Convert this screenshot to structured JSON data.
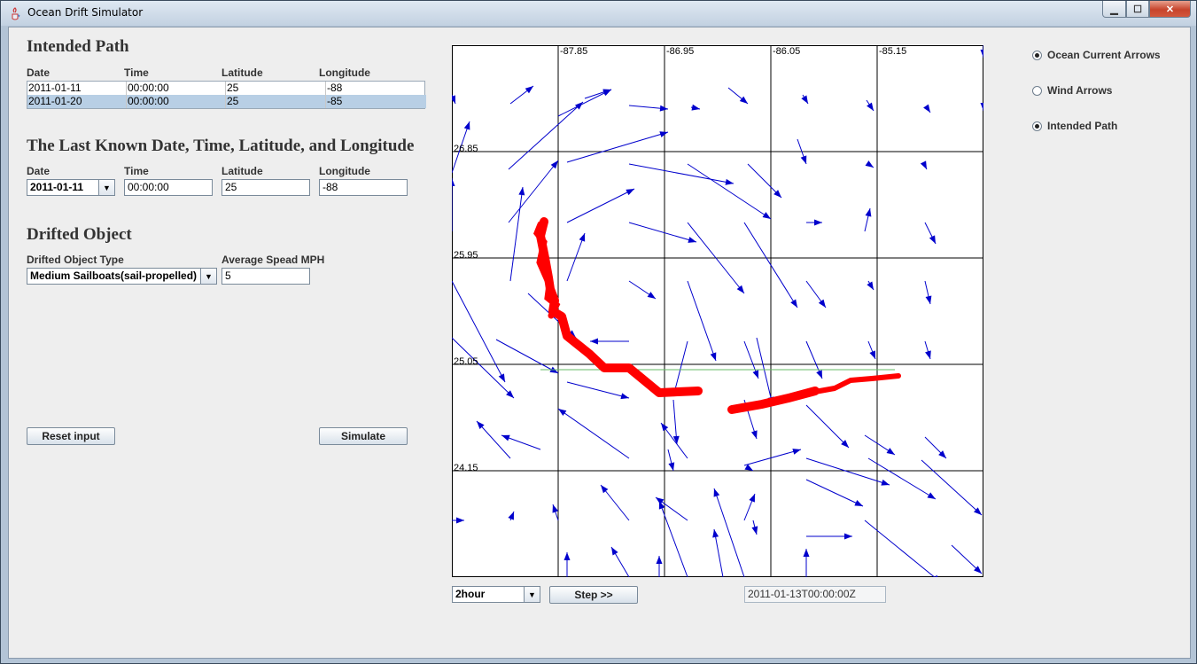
{
  "window": {
    "title": "Ocean Drift Simulator"
  },
  "intended_path": {
    "heading": "Intended Path",
    "columns": [
      "Date",
      "Time",
      "Latitude",
      "Longitude"
    ],
    "rows": [
      [
        "2011-01-11",
        "00:00:00",
        "25",
        "-88"
      ],
      [
        "2011-01-20",
        "00:00:00",
        "25",
        "-85"
      ]
    ],
    "selected_row": 1
  },
  "last_known": {
    "heading": "The Last Known Date, Time, Latitude, and Longitude",
    "date_label": "Date",
    "time_label": "Time",
    "lat_label": "Latitude",
    "lon_label": "Longitude",
    "date_value": "2011-01-11",
    "time_value": "00:00:00",
    "lat_value": "25",
    "lon_value": "-88"
  },
  "drifted_object": {
    "heading": "Drifted Object",
    "type_label": "Drifted Object Type",
    "speed_label": "Average Spead MPH",
    "type_value": "Medium Sailboats(sail-propelled)",
    "speed_value": "5"
  },
  "buttons": {
    "reset": "Reset input",
    "simulate": "Simulate",
    "step": "Step >>"
  },
  "map": {
    "lon_ticks": [
      "-87.85",
      "-86.95",
      "-86.05",
      "-85.15"
    ],
    "lat_ticks": [
      "26.85",
      "25.95",
      "25.05",
      "24.15"
    ],
    "colors": {
      "arrows": "#0000cc",
      "drift": "#ff0000",
      "intended": "#66bb66",
      "grid": "#000000"
    }
  },
  "controls": {
    "step_interval": "2hour",
    "timestamp": "2011-01-13T00:00:00Z"
  },
  "layers": [
    {
      "label": "Ocean Current Arrows",
      "checked": true
    },
    {
      "label": "Wind Arrows",
      "checked": false
    },
    {
      "label": "Intended Path",
      "checked": true
    }
  ]
}
